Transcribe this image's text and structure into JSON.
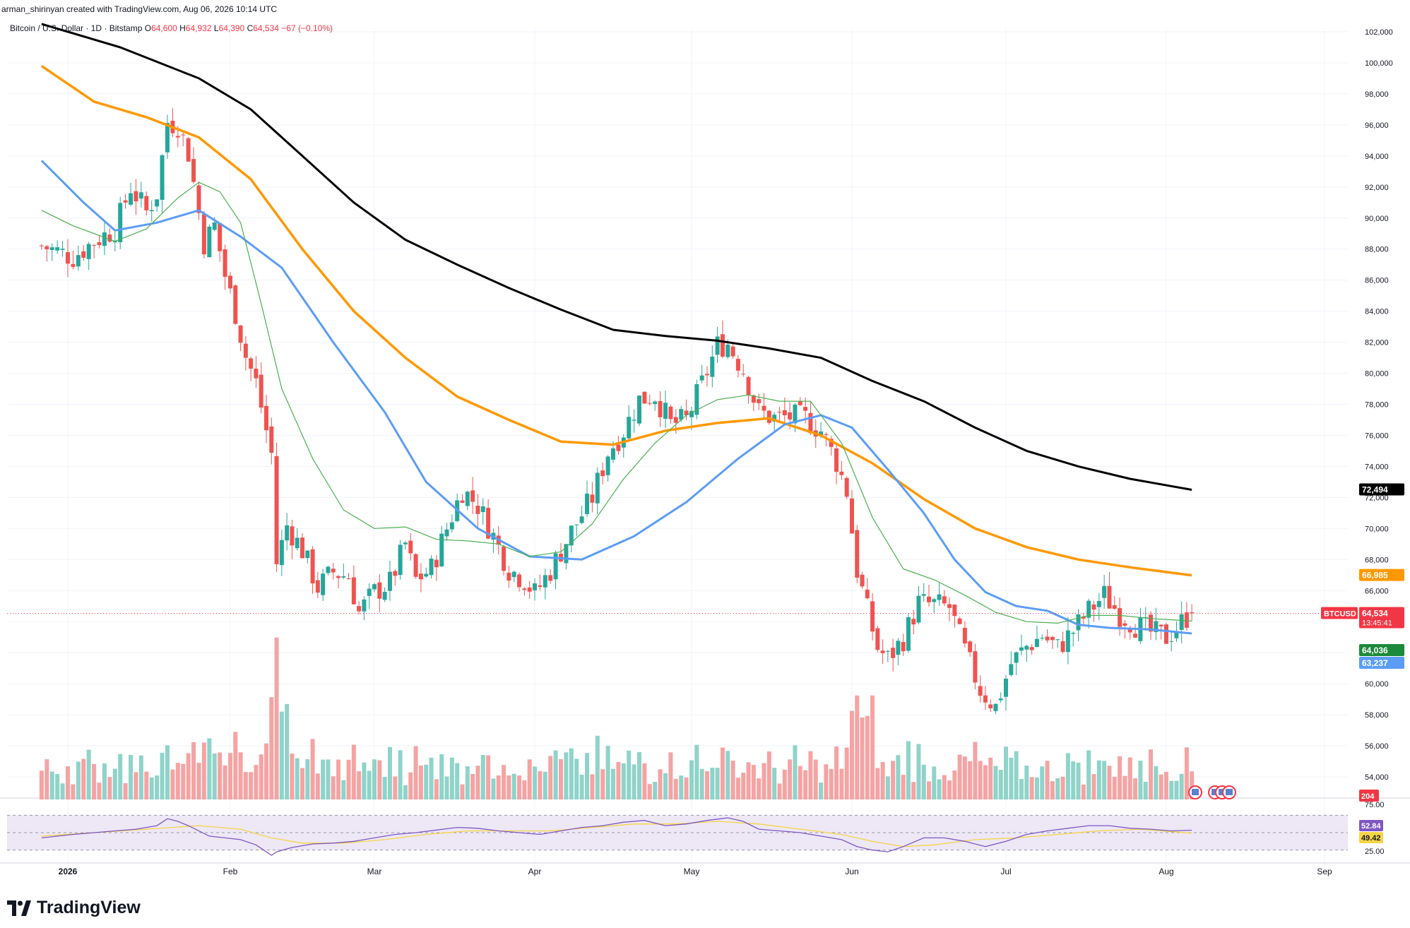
{
  "header": {
    "attribution": "arman_shirinyan created with TradingView.com, Aug 06, 2026 10:14 UTC"
  },
  "legend": {
    "symbol": "Bitcoin / U.S. Dollar · 1D · Bitstamp",
    "open_label": "O",
    "open": "64,600",
    "high_label": "H",
    "high": "64,932",
    "low_label": "L",
    "low": "64,390",
    "close_label": "C",
    "close": "64,534",
    "change": "−67 (−0.10%)"
  },
  "brand": {
    "name": "TradingView"
  },
  "colors": {
    "up": "#26a69a",
    "down": "#ef5350",
    "vol_up": "#8fd3c9",
    "vol_down": "#f5a3a3",
    "ma200": "#000000",
    "ma100": "#ff9800",
    "ma50": "#5b9cf6",
    "ma20": "#4caf50",
    "rsi": "#7e57c2",
    "rsi_ma": "#f5d547",
    "rsi_band": "#ede7f6"
  },
  "chart_data": {
    "type": "candlestick",
    "symbol": "BTCUSD",
    "timeframe": "1D",
    "ylim": [
      54000,
      103000
    ],
    "y_ticks": [
      "102,000",
      "100,000",
      "98,000",
      "96,000",
      "94,000",
      "92,000",
      "90,000",
      "88,000",
      "86,000",
      "84,000",
      "82,000",
      "80,000",
      "78,000",
      "76,000",
      "74,000",
      "72,000",
      "70,000",
      "68,000",
      "66,000",
      "64,000",
      "62,000",
      "60,000",
      "58,000",
      "56,000",
      "54,000"
    ],
    "x_ticks": [
      "2026",
      "Feb",
      "Mar",
      "Apr",
      "May",
      "Jun",
      "Jul",
      "Aug",
      "Sep"
    ],
    "x_tick_days": [
      5,
      36,
      64,
      95,
      125,
      156,
      186,
      217,
      248
    ],
    "day_start": 0,
    "day_end": 224,
    "close_path": [
      [
        0,
        88200
      ],
      [
        6,
        87500
      ],
      [
        10,
        88500
      ],
      [
        14,
        89300
      ],
      [
        17,
        92000
      ],
      [
        20,
        90400
      ],
      [
        22,
        91600
      ],
      [
        24,
        96200
      ],
      [
        26,
        96000
      ],
      [
        28,
        94200
      ],
      [
        31,
        88400
      ],
      [
        33,
        89500
      ],
      [
        35,
        86300
      ],
      [
        37,
        83900
      ],
      [
        39,
        81100
      ],
      [
        41,
        79400
      ],
      [
        44,
        74800
      ],
      [
        45,
        67800
      ],
      [
        47,
        70200
      ],
      [
        50,
        68600
      ],
      [
        53,
        66200
      ],
      [
        56,
        67200
      ],
      [
        59,
        66900
      ],
      [
        61,
        64600
      ],
      [
        64,
        65900
      ],
      [
        67,
        66500
      ],
      [
        70,
        69000
      ],
      [
        72,
        66700
      ],
      [
        75,
        67400
      ],
      [
        78,
        70000
      ],
      [
        81,
        72500
      ],
      [
        84,
        71500
      ],
      [
        87,
        69500
      ],
      [
        90,
        67400
      ],
      [
        93,
        66700
      ],
      [
        95,
        65800
      ],
      [
        98,
        67300
      ],
      [
        102,
        69800
      ],
      [
        106,
        72000
      ],
      [
        109,
        74900
      ],
      [
        112,
        76300
      ],
      [
        115,
        78300
      ],
      [
        118,
        78600
      ],
      [
        121,
        76700
      ],
      [
        124,
        77000
      ],
      [
        127,
        79300
      ],
      [
        130,
        81800
      ],
      [
        132,
        81900
      ],
      [
        135,
        80200
      ],
      [
        138,
        77500
      ],
      [
        141,
        77100
      ],
      [
        144,
        77200
      ],
      [
        147,
        77100
      ],
      [
        150,
        76300
      ],
      [
        153,
        74300
      ],
      [
        155,
        72400
      ],
      [
        157,
        67300
      ],
      [
        159,
        64700
      ],
      [
        161,
        62300
      ],
      [
        163,
        61600
      ],
      [
        166,
        62900
      ],
      [
        169,
        65200
      ],
      [
        172,
        65100
      ],
      [
        175,
        64900
      ],
      [
        178,
        62100
      ],
      [
        181,
        59600
      ],
      [
        184,
        58500
      ],
      [
        187,
        61300
      ],
      [
        190,
        62400
      ],
      [
        193,
        63100
      ],
      [
        196,
        62300
      ],
      [
        199,
        63400
      ],
      [
        202,
        64700
      ],
      [
        205,
        65700
      ],
      [
        208,
        64500
      ],
      [
        211,
        63800
      ],
      [
        214,
        63300
      ],
      [
        217,
        63000
      ],
      [
        219,
        63600
      ],
      [
        221,
        64300
      ],
      [
        222,
        64534
      ]
    ],
    "series": [
      {
        "name": "",
        "kind": "ma200",
        "color": "#000000",
        "points": [
          [
            0,
            102500
          ],
          [
            15,
            101000
          ],
          [
            30,
            99000
          ],
          [
            40,
            97000
          ],
          [
            50,
            94000
          ],
          [
            60,
            91000
          ],
          [
            70,
            88600
          ],
          [
            80,
            87000
          ],
          [
            90,
            85500
          ],
          [
            100,
            84100
          ],
          [
            110,
            82800
          ],
          [
            120,
            82400
          ],
          [
            130,
            82100
          ],
          [
            140,
            81600
          ],
          [
            150,
            81000
          ],
          [
            160,
            79500
          ],
          [
            170,
            78200
          ],
          [
            180,
            76500
          ],
          [
            190,
            75000
          ],
          [
            200,
            74000
          ],
          [
            210,
            73200
          ],
          [
            222,
            72494
          ]
        ]
      },
      {
        "name": "",
        "kind": "ma100",
        "color": "#ff9800",
        "points": [
          [
            0,
            99800
          ],
          [
            10,
            97500
          ],
          [
            20,
            96500
          ],
          [
            30,
            95200
          ],
          [
            40,
            92500
          ],
          [
            50,
            88000
          ],
          [
            60,
            84000
          ],
          [
            70,
            81000
          ],
          [
            80,
            78500
          ],
          [
            90,
            77000
          ],
          [
            100,
            75600
          ],
          [
            110,
            75400
          ],
          [
            120,
            76300
          ],
          [
            130,
            76800
          ],
          [
            140,
            77100
          ],
          [
            150,
            76000
          ],
          [
            160,
            74200
          ],
          [
            170,
            71900
          ],
          [
            180,
            70000
          ],
          [
            190,
            68800
          ],
          [
            200,
            68000
          ],
          [
            210,
            67500
          ],
          [
            222,
            66985
          ]
        ]
      },
      {
        "name": "",
        "kind": "ma50",
        "color": "#5b9cf6",
        "points": [
          [
            0,
            93700
          ],
          [
            8,
            91000
          ],
          [
            14,
            89200
          ],
          [
            22,
            89700
          ],
          [
            30,
            90500
          ],
          [
            38,
            88800
          ],
          [
            46,
            86800
          ],
          [
            56,
            82000
          ],
          [
            66,
            77500
          ],
          [
            74,
            73000
          ],
          [
            84,
            70000
          ],
          [
            94,
            68200
          ],
          [
            104,
            68000
          ],
          [
            114,
            69500
          ],
          [
            124,
            71700
          ],
          [
            134,
            74500
          ],
          [
            143,
            76700
          ],
          [
            150,
            77300
          ],
          [
            156,
            76500
          ],
          [
            163,
            73800
          ],
          [
            170,
            71000
          ],
          [
            176,
            68000
          ],
          [
            182,
            65900
          ],
          [
            188,
            65000
          ],
          [
            194,
            64700
          ],
          [
            200,
            63800
          ],
          [
            206,
            63600
          ],
          [
            214,
            63500
          ],
          [
            222,
            63237
          ]
        ]
      },
      {
        "name": "",
        "kind": "ma20",
        "color": "#4caf50",
        "points": [
          [
            0,
            90500
          ],
          [
            6,
            89500
          ],
          [
            14,
            88500
          ],
          [
            20,
            89300
          ],
          [
            26,
            91300
          ],
          [
            30,
            92300
          ],
          [
            34,
            91700
          ],
          [
            38,
            89700
          ],
          [
            42,
            84500
          ],
          [
            46,
            79000
          ],
          [
            52,
            74500
          ],
          [
            58,
            71200
          ],
          [
            64,
            70000
          ],
          [
            70,
            70100
          ],
          [
            76,
            69300
          ],
          [
            82,
            69200
          ],
          [
            88,
            69000
          ],
          [
            94,
            68200
          ],
          [
            100,
            68500
          ],
          [
            106,
            70300
          ],
          [
            112,
            73200
          ],
          [
            118,
            75500
          ],
          [
            124,
            77300
          ],
          [
            130,
            78300
          ],
          [
            136,
            78600
          ],
          [
            142,
            78200
          ],
          [
            148,
            78200
          ],
          [
            154,
            75500
          ],
          [
            160,
            70700
          ],
          [
            166,
            67400
          ],
          [
            172,
            66700
          ],
          [
            178,
            65700
          ],
          [
            184,
            64600
          ],
          [
            190,
            64000
          ],
          [
            196,
            63900
          ],
          [
            202,
            64400
          ],
          [
            208,
            64400
          ],
          [
            214,
            64200
          ],
          [
            222,
            64036
          ]
        ]
      }
    ],
    "price_labels": [
      {
        "text": "72,494",
        "value": 72494,
        "bg": "#000000",
        "fg": "#ffffff"
      },
      {
        "text": "66,985",
        "value": 66985,
        "bg": "#ff9800",
        "fg": "#ffffff"
      },
      {
        "text": "64,534",
        "value": 64534,
        "bg": "#f23645",
        "fg": "#ffffff",
        "sub": "13:45:41",
        "tag": "BTCUSD"
      },
      {
        "text": "64,036",
        "value": 64036,
        "bg": "#1b8a3a",
        "fg": "#ffffff",
        "below": true
      },
      {
        "text": "63,237",
        "value": 63237,
        "bg": "#5b9cf6",
        "fg": "#ffffff",
        "below": true
      }
    ],
    "volume_label": "204",
    "rsi": {
      "ticks": [
        "75.00",
        "25.00"
      ],
      "ylim": [
        20,
        80
      ],
      "upper": 70,
      "mid": 50,
      "lower": 30,
      "value_label": "52.84",
      "ma_label": "49.42",
      "path": [
        [
          0,
          44
        ],
        [
          6,
          48
        ],
        [
          10,
          50
        ],
        [
          14,
          52
        ],
        [
          18,
          54
        ],
        [
          22,
          58
        ],
        [
          24,
          66
        ],
        [
          26,
          63
        ],
        [
          28,
          58
        ],
        [
          32,
          46
        ],
        [
          35,
          44
        ],
        [
          38,
          42
        ],
        [
          41,
          36
        ],
        [
          44,
          24
        ],
        [
          45,
          28
        ],
        [
          48,
          33
        ],
        [
          52,
          37
        ],
        [
          56,
          38
        ],
        [
          60,
          40
        ],
        [
          64,
          44
        ],
        [
          68,
          48
        ],
        [
          72,
          50
        ],
        [
          76,
          53
        ],
        [
          80,
          56
        ],
        [
          84,
          55
        ],
        [
          88,
          52
        ],
        [
          92,
          50
        ],
        [
          96,
          48
        ],
        [
          100,
          52
        ],
        [
          104,
          56
        ],
        [
          108,
          58
        ],
        [
          112,
          62
        ],
        [
          116,
          64
        ],
        [
          120,
          58
        ],
        [
          124,
          60
        ],
        [
          128,
          64
        ],
        [
          132,
          67
        ],
        [
          135,
          63
        ],
        [
          138,
          54
        ],
        [
          142,
          52
        ],
        [
          146,
          50
        ],
        [
          150,
          46
        ],
        [
          154,
          42
        ],
        [
          157,
          34
        ],
        [
          160,
          30
        ],
        [
          163,
          28
        ],
        [
          166,
          34
        ],
        [
          170,
          44
        ],
        [
          174,
          44
        ],
        [
          178,
          40
        ],
        [
          182,
          34
        ],
        [
          186,
          40
        ],
        [
          190,
          48
        ],
        [
          194,
          52
        ],
        [
          198,
          55
        ],
        [
          202,
          58
        ],
        [
          206,
          58
        ],
        [
          210,
          55
        ],
        [
          214,
          54
        ],
        [
          218,
          52
        ],
        [
          222,
          52.84
        ]
      ],
      "ma_path": [
        [
          0,
          46
        ],
        [
          10,
          50
        ],
        [
          20,
          54
        ],
        [
          30,
          58
        ],
        [
          38,
          54
        ],
        [
          44,
          44
        ],
        [
          50,
          38
        ],
        [
          58,
          38
        ],
        [
          66,
          42
        ],
        [
          74,
          48
        ],
        [
          82,
          52
        ],
        [
          90,
          52
        ],
        [
          98,
          52
        ],
        [
          106,
          56
        ],
        [
          114,
          60
        ],
        [
          122,
          60
        ],
        [
          130,
          63
        ],
        [
          138,
          60
        ],
        [
          146,
          54
        ],
        [
          154,
          48
        ],
        [
          160,
          40
        ],
        [
          166,
          34
        ],
        [
          172,
          36
        ],
        [
          180,
          42
        ],
        [
          188,
          44
        ],
        [
          196,
          48
        ],
        [
          204,
          52
        ],
        [
          212,
          54
        ],
        [
          222,
          49.42
        ]
      ]
    }
  }
}
